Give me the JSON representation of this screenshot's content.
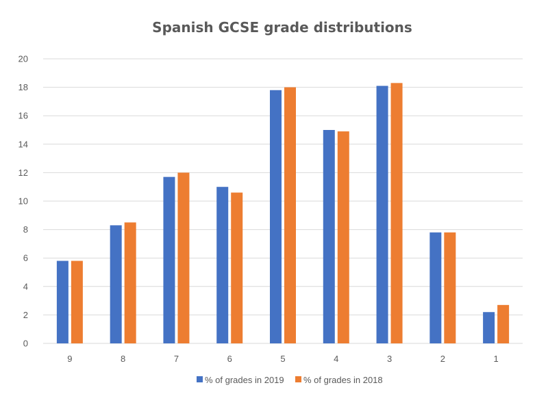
{
  "chart_data": {
    "type": "bar",
    "title": "Spanish GCSE grade distributions",
    "xlabel": "",
    "ylabel": "",
    "categories": [
      "9",
      "8",
      "7",
      "6",
      "5",
      "4",
      "3",
      "2",
      "1"
    ],
    "series": [
      {
        "name": "% of grades in 2019",
        "color": "#4472C4",
        "values": [
          5.8,
          8.3,
          11.7,
          11.0,
          17.8,
          15.0,
          18.1,
          7.8,
          2.2
        ]
      },
      {
        "name": "% of grades in 2018",
        "color": "#ED7D31",
        "values": [
          5.8,
          8.5,
          12.0,
          10.6,
          18.0,
          14.9,
          18.3,
          7.8,
          2.7
        ]
      }
    ],
    "ylim": [
      0,
      20
    ],
    "yticks": [
      0,
      2,
      4,
      6,
      8,
      10,
      12,
      14,
      16,
      18,
      20
    ],
    "grid": true,
    "legend_position": "bottom",
    "gridline_color": "#D9D9D9"
  }
}
